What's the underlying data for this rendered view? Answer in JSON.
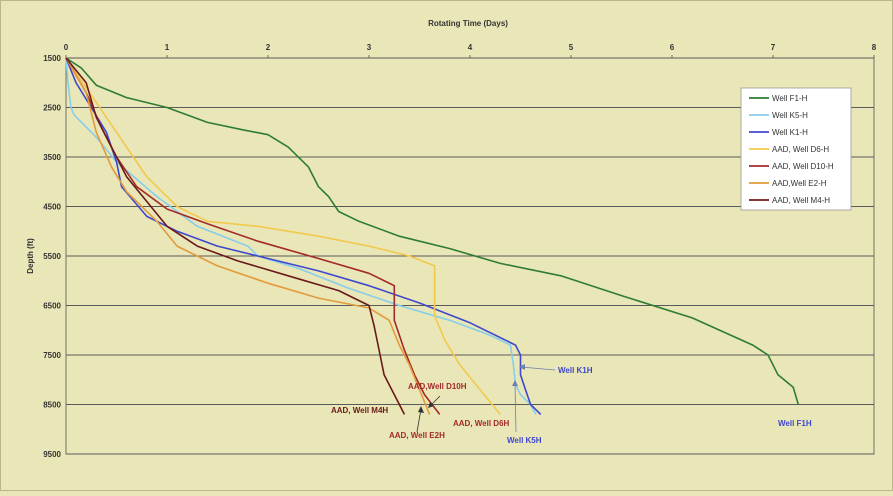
{
  "chart_data": {
    "type": "line",
    "xlabel": "Rotating Time (Days)",
    "ylabel": "Depth (ft)",
    "xlim": [
      0,
      8
    ],
    "ylim": [
      1500,
      9500
    ],
    "y_inverted": true,
    "x_axis_position": "top",
    "xticks": [
      "0",
      "1",
      "2",
      "3",
      "4",
      "5",
      "6",
      "7",
      "8"
    ],
    "yticks": [
      "1500",
      "2500",
      "3500",
      "4500",
      "5500",
      "6500",
      "7500",
      "8500",
      "9500"
    ],
    "grid": "horizontal",
    "legend_position": "right",
    "series": [
      {
        "name": "Well F1-H",
        "color": "#2e7d32",
        "points": [
          [
            0,
            1500
          ],
          [
            0.15,
            1700
          ],
          [
            0.3,
            2050
          ],
          [
            0.6,
            2300
          ],
          [
            1,
            2500
          ],
          [
            1.4,
            2800
          ],
          [
            1.75,
            2950
          ],
          [
            2,
            3050
          ],
          [
            2.2,
            3300
          ],
          [
            2.4,
            3700
          ],
          [
            2.5,
            4100
          ],
          [
            2.6,
            4300
          ],
          [
            2.7,
            4600
          ],
          [
            2.9,
            4800
          ],
          [
            3.3,
            5100
          ],
          [
            3.8,
            5350
          ],
          [
            4.3,
            5650
          ],
          [
            4.9,
            5900
          ],
          [
            5.5,
            6300
          ],
          [
            6.2,
            6750
          ],
          [
            6.8,
            7300
          ],
          [
            6.95,
            7500
          ],
          [
            7.05,
            7900
          ],
          [
            7.2,
            8150
          ],
          [
            7.25,
            8500
          ]
        ]
      },
      {
        "name": "Well K5-H",
        "color": "#87ceeb",
        "points": [
          [
            0,
            1500
          ],
          [
            0.02,
            2000
          ],
          [
            0.05,
            2500
          ],
          [
            0.08,
            2650
          ],
          [
            0.3,
            3100
          ],
          [
            0.5,
            3600
          ],
          [
            0.9,
            4300
          ],
          [
            1.3,
            4900
          ],
          [
            1.8,
            5300
          ],
          [
            1.9,
            5500
          ],
          [
            2.3,
            5750
          ],
          [
            2.8,
            6150
          ],
          [
            3.3,
            6500
          ],
          [
            3.8,
            6800
          ],
          [
            4.2,
            7100
          ],
          [
            4.4,
            7300
          ],
          [
            4.43,
            7700
          ],
          [
            4.45,
            8100
          ],
          [
            4.5,
            8300
          ],
          [
            4.6,
            8500
          ],
          [
            4.65,
            8700
          ]
        ]
      },
      {
        "name": "Well K1-H",
        "color": "#3f48cc",
        "points": [
          [
            0,
            1500
          ],
          [
            0.1,
            2000
          ],
          [
            0.25,
            2500
          ],
          [
            0.4,
            3000
          ],
          [
            0.5,
            3600
          ],
          [
            0.55,
            4100
          ],
          [
            0.8,
            4700
          ],
          [
            1.1,
            5000
          ],
          [
            1.5,
            5300
          ],
          [
            2,
            5550
          ],
          [
            2.5,
            5800
          ],
          [
            3,
            6100
          ],
          [
            3.5,
            6450
          ],
          [
            4,
            6850
          ],
          [
            4.45,
            7300
          ],
          [
            4.5,
            7500
          ],
          [
            4.5,
            7900
          ],
          [
            4.55,
            8200
          ],
          [
            4.6,
            8500
          ],
          [
            4.7,
            8700
          ]
        ]
      },
      {
        "name": "AAD, Well D6-H",
        "color": "#f2c94c",
        "points": [
          [
            0,
            1500
          ],
          [
            0.2,
            2100
          ],
          [
            0.4,
            2700
          ],
          [
            0.6,
            3300
          ],
          [
            0.8,
            3900
          ],
          [
            1.1,
            4500
          ],
          [
            1.4,
            4800
          ],
          [
            1.9,
            4900
          ],
          [
            2.5,
            5100
          ],
          [
            3,
            5300
          ],
          [
            3.4,
            5500
          ],
          [
            3.65,
            5700
          ],
          [
            3.65,
            6000
          ],
          [
            3.65,
            6700
          ],
          [
            3.75,
            7200
          ],
          [
            3.9,
            7700
          ],
          [
            4.1,
            8200
          ],
          [
            4.3,
            8700
          ]
        ]
      },
      {
        "name": "AAD, Well D10-H",
        "color": "#a32a2a",
        "points": [
          [
            0,
            1500
          ],
          [
            0.2,
            2200
          ],
          [
            0.35,
            2900
          ],
          [
            0.5,
            3500
          ],
          [
            0.7,
            4100
          ],
          [
            1,
            4550
          ],
          [
            1.4,
            4850
          ],
          [
            1.9,
            5200
          ],
          [
            2.5,
            5550
          ],
          [
            3,
            5850
          ],
          [
            3.25,
            6100
          ],
          [
            3.25,
            6500
          ],
          [
            3.25,
            6800
          ],
          [
            3.35,
            7400
          ],
          [
            3.45,
            7900
          ],
          [
            3.55,
            8300
          ],
          [
            3.7,
            8700
          ]
        ]
      },
      {
        "name": "AAD,Well E2-H",
        "color": "#e39b3a",
        "points": [
          [
            0,
            1500
          ],
          [
            0.2,
            2200
          ],
          [
            0.3,
            3000
          ],
          [
            0.45,
            3700
          ],
          [
            0.6,
            4200
          ],
          [
            0.9,
            4800
          ],
          [
            1.1,
            5300
          ],
          [
            1.5,
            5700
          ],
          [
            2,
            6050
          ],
          [
            2.5,
            6350
          ],
          [
            3,
            6550
          ],
          [
            3.2,
            6800
          ],
          [
            3.3,
            7300
          ],
          [
            3.4,
            7700
          ],
          [
            3.5,
            8200
          ],
          [
            3.6,
            8700
          ]
        ]
      },
      {
        "name": "AAD, Well M4-H",
        "color": "#6b1a1a",
        "points": [
          [
            0,
            1500
          ],
          [
            0.2,
            2000
          ],
          [
            0.3,
            2700
          ],
          [
            0.45,
            3300
          ],
          [
            0.6,
            3900
          ],
          [
            0.8,
            4400
          ],
          [
            1,
            4900
          ],
          [
            1.3,
            5300
          ],
          [
            1.7,
            5600
          ],
          [
            2.2,
            5900
          ],
          [
            2.7,
            6200
          ],
          [
            3,
            6500
          ],
          [
            3.05,
            6900
          ],
          [
            3.1,
            7400
          ],
          [
            3.15,
            7900
          ],
          [
            3.25,
            8300
          ],
          [
            3.35,
            8700
          ]
        ]
      }
    ],
    "annotations": [
      {
        "text": "Well K1H",
        "color": "#3f48cc"
      },
      {
        "text": "AAD,Well  D10H",
        "color": "#a32a2a"
      },
      {
        "text": "AAD, Well M4H",
        "color": "#6b1a1a"
      },
      {
        "text": "AAD, Well E2H",
        "color": "#a32a2a"
      },
      {
        "text": "AAD, Well D6H",
        "color": "#a32a2a"
      },
      {
        "text": "Well K5H",
        "color": "#3f48cc"
      },
      {
        "text": "Well F1H",
        "color": "#3f48cc"
      }
    ]
  }
}
